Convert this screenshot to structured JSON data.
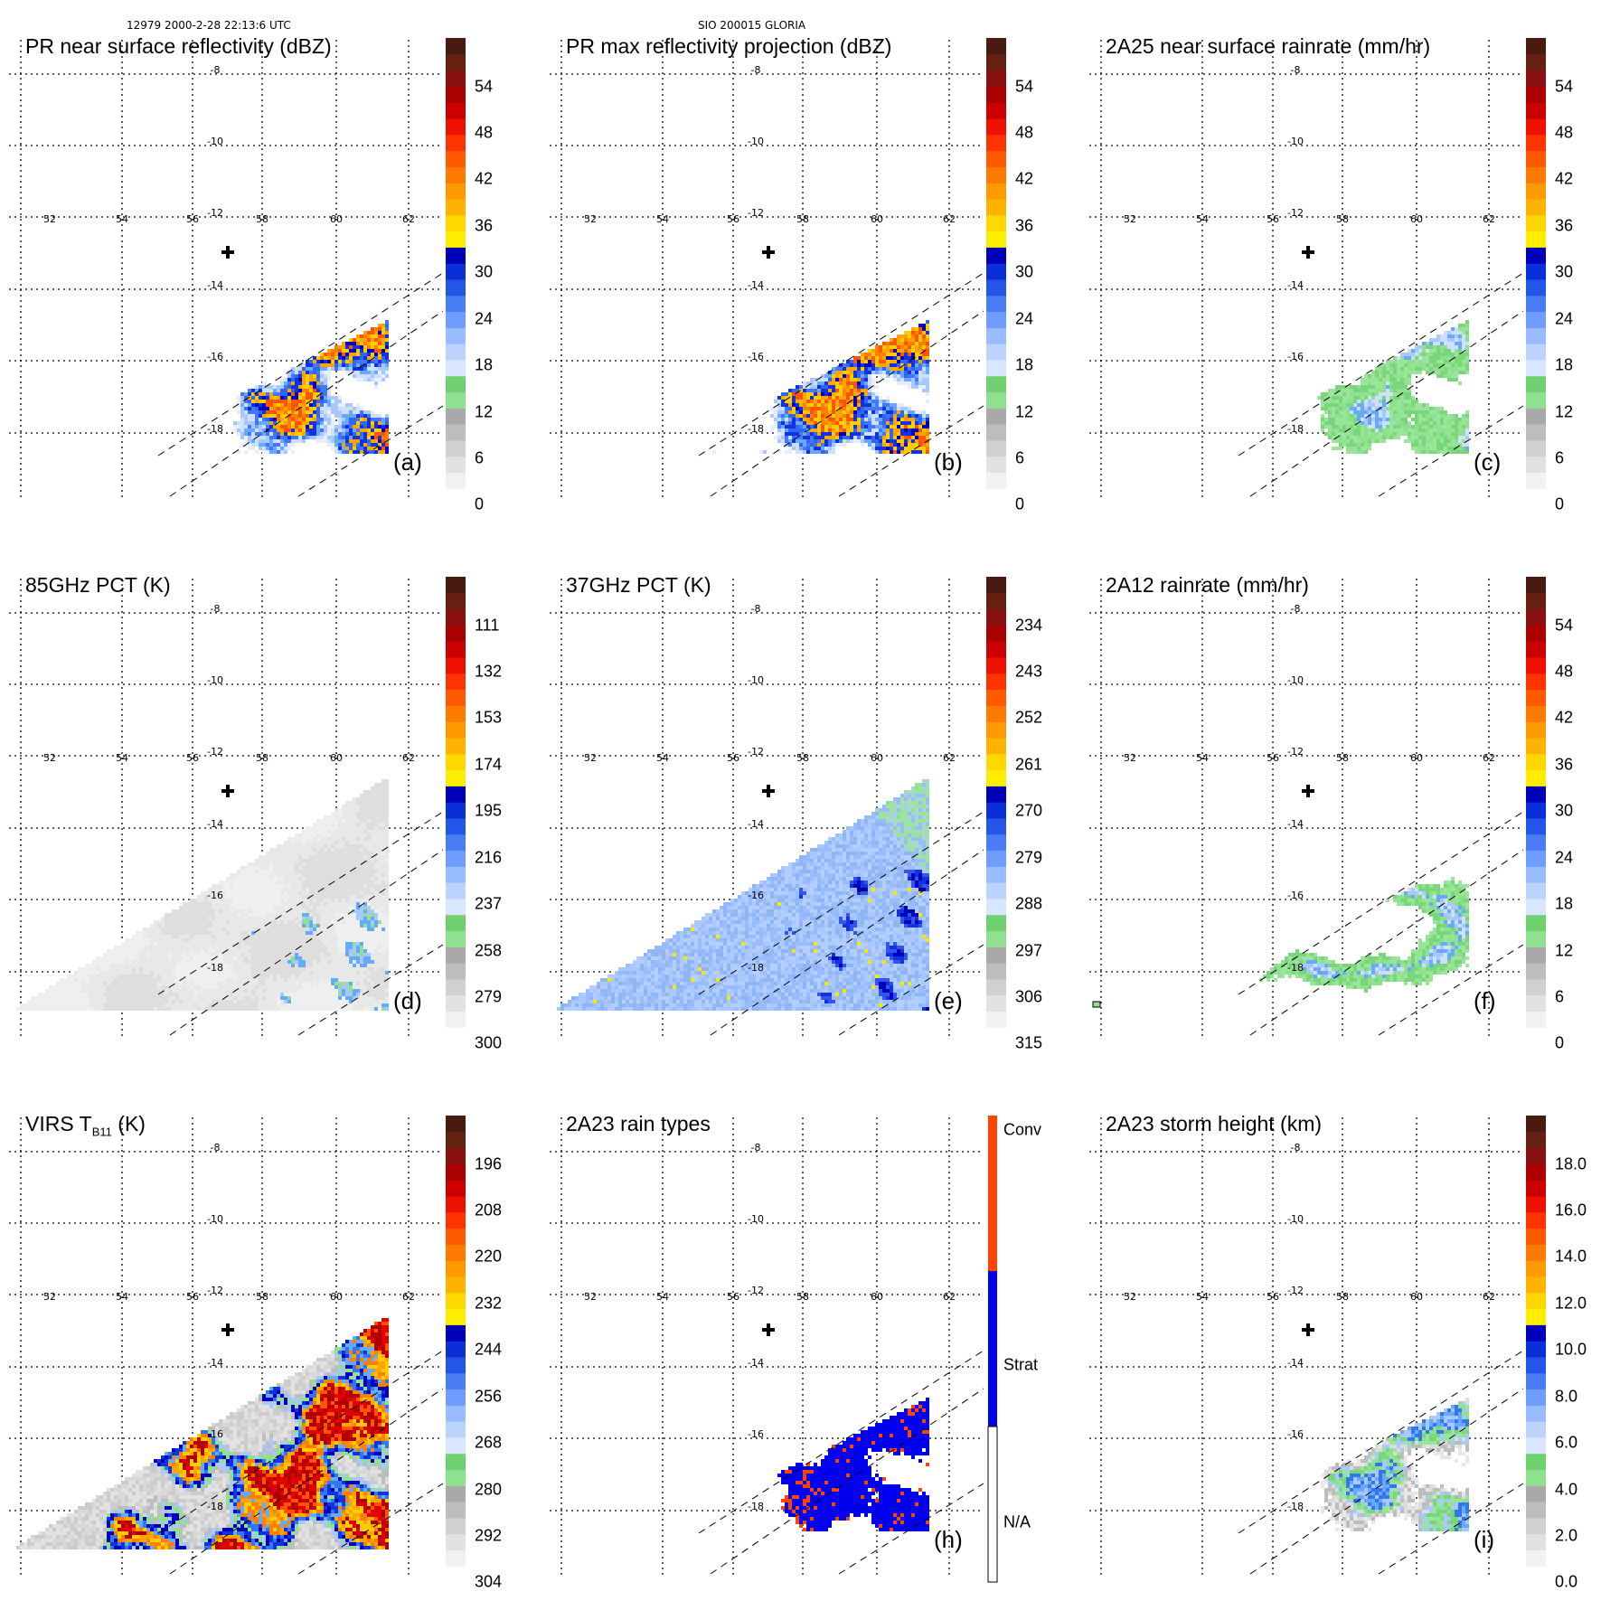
{
  "header": {
    "left": "12979 2000-2-28 22:13:6 UTC",
    "center": "SIO 200015 GLORIA"
  },
  "chart_data": [
    {
      "type": "heatmap",
      "id": "a",
      "title": "PR near surface reflectivity (dBZ)",
      "panel_label": "(a)",
      "colorbar_ticks": [
        "0",
        "6",
        "12",
        "18",
        "24",
        "30",
        "36",
        "42",
        "48",
        "54"
      ],
      "lon_labels": [
        "52",
        "54",
        "56",
        "58",
        "60",
        "62"
      ],
      "lat_labels": [
        "-8",
        "-10",
        "-12",
        "-14",
        "-16",
        "-18"
      ],
      "swath": "pr",
      "field": "pr_ref"
    },
    {
      "type": "heatmap",
      "id": "b",
      "title": "PR max reflectivity projection (dBZ)",
      "panel_label": "(b)",
      "colorbar_ticks": [
        "0",
        "6",
        "12",
        "18",
        "24",
        "30",
        "36",
        "42",
        "48",
        "54"
      ],
      "lon_labels": [
        "52",
        "54",
        "56",
        "58",
        "60",
        "62"
      ],
      "lat_labels": [
        "-8",
        "-10",
        "-12",
        "-14",
        "-16",
        "-18"
      ],
      "swath": "pr",
      "field": "pr_max"
    },
    {
      "type": "heatmap",
      "id": "c",
      "title": "2A25 near surface rainrate (mm/hr)",
      "panel_label": "(c)",
      "colorbar_ticks": [
        "0",
        "6",
        "12",
        "18",
        "24",
        "30",
        "36",
        "42",
        "48",
        "54"
      ],
      "lon_labels": [
        "52",
        "54",
        "56",
        "58",
        "60",
        "62"
      ],
      "lat_labels": [
        "-8",
        "-10",
        "-12",
        "-14",
        "-16",
        "-18"
      ],
      "swath": "pr",
      "field": "rain25"
    },
    {
      "type": "heatmap",
      "id": "d",
      "title": "85GHz PCT (K)",
      "panel_label": "(d)",
      "colorbar_ticks": [
        "300",
        "279",
        "258",
        "237",
        "216",
        "195",
        "174",
        "153",
        "132",
        "111"
      ],
      "lon_labels": [
        "52",
        "54",
        "56",
        "58",
        "60",
        "62"
      ],
      "lat_labels": [
        "-8",
        "-10",
        "-12",
        "-14",
        "-16",
        "-18"
      ],
      "swath": "tmi",
      "field": "pct85"
    },
    {
      "type": "heatmap",
      "id": "e",
      "title": "37GHz PCT (K)",
      "panel_label": "(e)",
      "colorbar_ticks": [
        "315",
        "306",
        "297",
        "288",
        "279",
        "270",
        "261",
        "252",
        "243",
        "234"
      ],
      "lon_labels": [
        "52",
        "54",
        "56",
        "58",
        "60",
        "62"
      ],
      "lat_labels": [
        "-8",
        "-10",
        "-12",
        "-14",
        "-16",
        "-18"
      ],
      "swath": "tmi",
      "field": "pct37"
    },
    {
      "type": "heatmap",
      "id": "f",
      "title": "2A12 rainrate (mm/hr)",
      "panel_label": "(f)",
      "colorbar_ticks": [
        "0",
        "6",
        "12",
        "18",
        "24",
        "30",
        "36",
        "42",
        "48",
        "54"
      ],
      "lon_labels": [
        "52",
        "54",
        "56",
        "58",
        "60",
        "62"
      ],
      "lat_labels": [
        "-8",
        "-10",
        "-12",
        "-14",
        "-16",
        "-18"
      ],
      "swath": "pr",
      "field": "rain12"
    },
    {
      "type": "heatmap",
      "id": "g",
      "title": "VIRS T",
      "title_sub": "B11",
      "title_unit": " (K)",
      "panel_label": "",
      "colorbar_ticks": [
        "304",
        "292",
        "280",
        "268",
        "256",
        "244",
        "232",
        "220",
        "208",
        "196"
      ],
      "lon_labels": [
        "52",
        "54",
        "56",
        "58",
        "60",
        "62"
      ],
      "lat_labels": [
        "-8",
        "-10",
        "-12",
        "-14",
        "-16",
        "-18"
      ],
      "swath": "tmi",
      "field": "virs"
    },
    {
      "type": "heatmap",
      "id": "h",
      "title": "2A23 rain types",
      "panel_label": "(h)",
      "colorbar_categories": [
        "N/A",
        "Strat",
        "Conv"
      ],
      "lon_labels": [
        "52",
        "54",
        "56",
        "58",
        "60",
        "62"
      ],
      "lat_labels": [
        "-8",
        "-10",
        "-12",
        "-14",
        "-16",
        "-18"
      ],
      "swath": "pr",
      "field": "raintype"
    },
    {
      "type": "heatmap",
      "id": "i",
      "title": "2A23 storm height (km)",
      "panel_label": "(i)",
      "colorbar_ticks": [
        "0.0",
        "2.0",
        "4.0",
        "6.0",
        "8.0",
        "10.0",
        "12.0",
        "14.0",
        "16.0",
        "18.0"
      ],
      "lon_labels": [
        "52",
        "54",
        "56",
        "58",
        "60",
        "62"
      ],
      "lat_labels": [
        "-8",
        "-10",
        "-12",
        "-14",
        "-16",
        "-18"
      ],
      "swath": "pr",
      "field": "height"
    }
  ],
  "colors": {
    "palette": [
      "#f5f5f5",
      "#dcdcdc",
      "#bdbdbd",
      "#9a9a9a",
      "#8fe08f",
      "#66cc66",
      "#cfe0ff",
      "#a8c8ff",
      "#66aaff",
      "#3377ee",
      "#1133dd",
      "#0000bb",
      "#ffe600",
      "#ffff00",
      "#ffcc00",
      "#ffa500",
      "#ff7f00",
      "#ff5500",
      "#ff2a00",
      "#e00000",
      "#b00000",
      "#7a1010",
      "#4a1a10"
    ],
    "raintype": {
      "na": "#ffffff",
      "strat": "#0000ee",
      "conv": "#ff4400"
    }
  }
}
